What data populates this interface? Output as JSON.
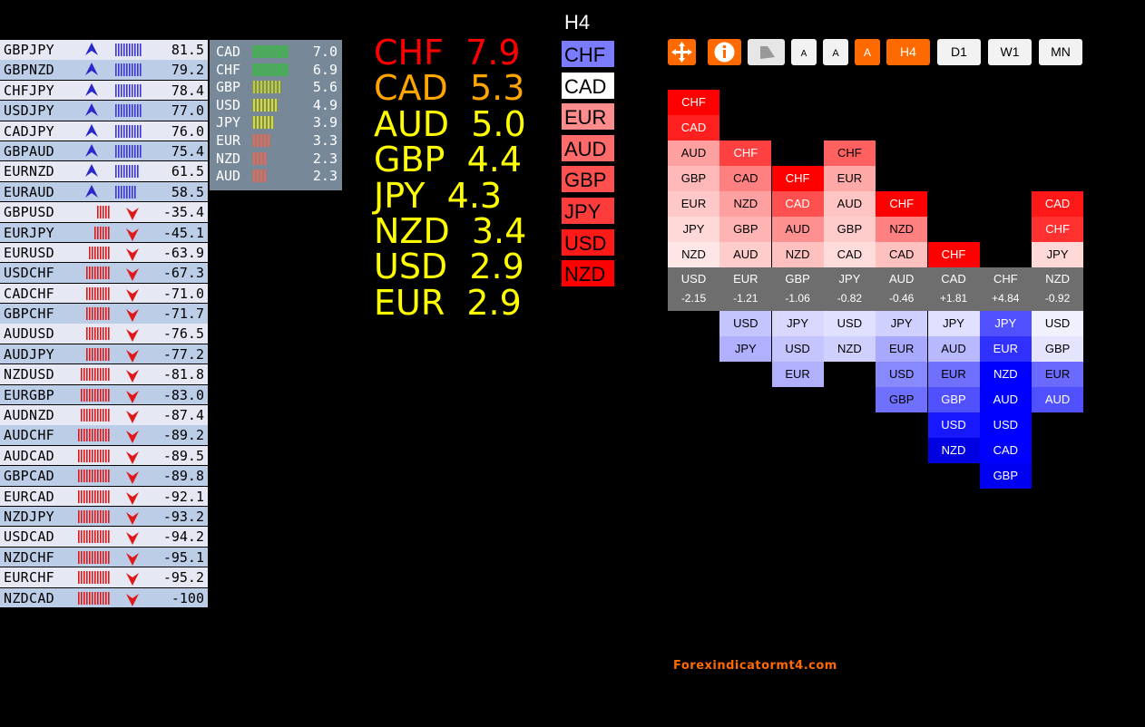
{
  "pairs": [
    {
      "name": "GBPJPY",
      "value": "81.5",
      "dir": "up",
      "bars": 10
    },
    {
      "name": "GBPNZD",
      "value": "79.2",
      "dir": "up",
      "bars": 10
    },
    {
      "name": "CHFJPY",
      "value": "78.4",
      "dir": "up",
      "bars": 10
    },
    {
      "name": "USDJPY",
      "value": "77.0",
      "dir": "up",
      "bars": 10
    },
    {
      "name": "CADJPY",
      "value": "76.0",
      "dir": "up",
      "bars": 10
    },
    {
      "name": "GBPAUD",
      "value": "75.4",
      "dir": "up",
      "bars": 10
    },
    {
      "name": "EURNZD",
      "value": "61.5",
      "dir": "up",
      "bars": 9
    },
    {
      "name": "EURAUD",
      "value": "58.5",
      "dir": "up",
      "bars": 8
    },
    {
      "name": "GBPUSD",
      "value": "-35.4",
      "dir": "down",
      "bars": 5
    },
    {
      "name": "EURJPY",
      "value": "-45.1",
      "dir": "down",
      "bars": 6
    },
    {
      "name": "EURUSD",
      "value": "-63.9",
      "dir": "down",
      "bars": 8
    },
    {
      "name": "USDCHF",
      "value": "-67.3",
      "dir": "down",
      "bars": 9
    },
    {
      "name": "CADCHF",
      "value": "-71.0",
      "dir": "down",
      "bars": 9
    },
    {
      "name": "GBPCHF",
      "value": "-71.7",
      "dir": "down",
      "bars": 9
    },
    {
      "name": "AUDUSD",
      "value": "-76.5",
      "dir": "down",
      "bars": 9
    },
    {
      "name": "AUDJPY",
      "value": "-77.2",
      "dir": "down",
      "bars": 9
    },
    {
      "name": "NZDUSD",
      "value": "-81.8",
      "dir": "down",
      "bars": 11
    },
    {
      "name": "EURGBP",
      "value": "-83.0",
      "dir": "down",
      "bars": 11
    },
    {
      "name": "AUDNZD",
      "value": "-87.4",
      "dir": "down",
      "bars": 11
    },
    {
      "name": "AUDCHF",
      "value": "-89.2",
      "dir": "down",
      "bars": 12
    },
    {
      "name": "AUDCAD",
      "value": "-89.5",
      "dir": "down",
      "bars": 12
    },
    {
      "name": "GBPCAD",
      "value": "-89.8",
      "dir": "down",
      "bars": 12
    },
    {
      "name": "EURCAD",
      "value": "-92.1",
      "dir": "down",
      "bars": 12
    },
    {
      "name": "NZDJPY",
      "value": "-93.2",
      "dir": "down",
      "bars": 12
    },
    {
      "name": "USDCAD",
      "value": "-94.2",
      "dir": "down",
      "bars": 12
    },
    {
      "name": "NZDCHF",
      "value": "-95.1",
      "dir": "down",
      "bars": 12
    },
    {
      "name": "EURCHF",
      "value": "-95.2",
      "dir": "down",
      "bars": 12
    },
    {
      "name": "NZDCAD",
      "value": "-100",
      "dir": "down",
      "bars": 12
    }
  ],
  "meter": [
    {
      "cur": "CAD",
      "value": "7.0",
      "bars": 10,
      "color": "#22cc22"
    },
    {
      "cur": "CHF",
      "value": "6.9",
      "bars": 10,
      "color": "#22cc22"
    },
    {
      "cur": "GBP",
      "value": "5.6",
      "bars": 8,
      "color": "#c8d400"
    },
    {
      "cur": "USD",
      "value": "4.9",
      "bars": 7,
      "color": "#e0e000"
    },
    {
      "cur": "JPY",
      "value": "3.9",
      "bars": 6,
      "color": "#e0e000"
    },
    {
      "cur": "EUR",
      "value": "3.3",
      "bars": 5,
      "color": "#ff6040"
    },
    {
      "cur": "NZD",
      "value": "2.3",
      "bars": 4,
      "color": "#ff6040"
    },
    {
      "cur": "AUD",
      "value": "2.3",
      "bars": 4,
      "color": "#ff6040"
    }
  ],
  "big": [
    {
      "text": "CHF  7.9",
      "color": "#ff0000"
    },
    {
      "text": "CAD  5.3",
      "color": "#ffa500"
    },
    {
      "text": "AUD  5.0",
      "color": "#ffff00"
    },
    {
      "text": "GBP  4.4",
      "color": "#ffff00"
    },
    {
      "text": "JPY  4.3",
      "color": "#ffff00"
    },
    {
      "text": "NZD  3.4",
      "color": "#ffff00"
    },
    {
      "text": "USD  2.9",
      "color": "#ffff00"
    },
    {
      "text": "EUR  2.9",
      "color": "#ffff00"
    }
  ],
  "h4": {
    "title": "H4",
    "boxes": [
      {
        "label": "CHF",
        "color": "#7b7bff"
      },
      {
        "label": "CAD",
        "color": "#ffffff"
      },
      {
        "label": "EUR",
        "color": "#ff8c8c"
      },
      {
        "label": "AUD",
        "color": "#ff6a6a"
      },
      {
        "label": "GBP",
        "color": "#ff5050"
      },
      {
        "label": "JPY",
        "color": "#ff3c3c"
      },
      {
        "label": "USD",
        "color": "#ff1a1a"
      },
      {
        "label": "NZD",
        "color": "#ff0000"
      }
    ]
  },
  "toolbar": {
    "buttons": [
      {
        "name": "move-icon",
        "label": "✥",
        "bg": "#ff6a00",
        "fg": "#fff"
      },
      {
        "name": "info-icon",
        "label": "ℹ",
        "bg": "#ff6a00",
        "fg": "#fff"
      },
      {
        "name": "bell-icon",
        "label": "",
        "bg": "#e6e6e6",
        "fg": "#888"
      },
      {
        "name": "font-small-button",
        "label": "A",
        "bg": "#f2f2f2",
        "fg": "#000"
      },
      {
        "name": "font-medium-button",
        "label": "A",
        "bg": "#f2f2f2",
        "fg": "#000"
      },
      {
        "name": "font-large-button",
        "label": "A",
        "bg": "#ff6a00",
        "fg": "#fff"
      },
      {
        "name": "timeframe-h4-button",
        "label": "H4",
        "bg": "#ff6a00",
        "fg": "#fff"
      },
      {
        "name": "timeframe-d1-button",
        "label": "D1",
        "bg": "#f2f2f2",
        "fg": "#000"
      },
      {
        "name": "timeframe-w1-button",
        "label": "W1",
        "bg": "#f2f2f2",
        "fg": "#000"
      },
      {
        "name": "timeframe-mn-button",
        "label": "MN",
        "bg": "#f2f2f2",
        "fg": "#000"
      }
    ]
  },
  "grid": {
    "columns": [
      {
        "cur": "USD",
        "val": "-2.15",
        "above": [
          "CHF",
          "CAD",
          "AUD",
          "GBP",
          "EUR",
          "JPY",
          "NZD"
        ],
        "below": []
      },
      {
        "cur": "EUR",
        "val": "-1.21",
        "above": [
          "CHF",
          "CAD",
          "NZD",
          "GBP",
          "AUD"
        ],
        "below": [
          "USD",
          "JPY"
        ]
      },
      {
        "cur": "GBP",
        "val": "-1.06",
        "above": [
          "CHF",
          "CAD",
          "AUD",
          "NZD"
        ],
        "below": [
          "JPY",
          "USD",
          "EUR"
        ]
      },
      {
        "cur": "JPY",
        "val": "-0.82",
        "above": [
          "CHF",
          "EUR",
          "AUD",
          "GBP",
          "CAD"
        ],
        "below": [
          "USD",
          "NZD"
        ]
      },
      {
        "cur": "AUD",
        "val": "-0.46",
        "above": [
          "CHF",
          "NZD",
          "CAD"
        ],
        "below": [
          "JPY",
          "EUR",
          "USD",
          "GBP"
        ]
      },
      {
        "cur": "CAD",
        "val": "+1.81",
        "above": [
          "CHF"
        ],
        "below": [
          "JPY",
          "AUD",
          "EUR",
          "GBP",
          "USD",
          "NZD"
        ]
      },
      {
        "cur": "CHF",
        "val": "+4.84",
        "above": [],
        "below": [
          "JPY",
          "EUR",
          "NZD",
          "AUD",
          "USD",
          "CAD",
          "GBP"
        ]
      },
      {
        "cur": "NZD",
        "val": "-0.92",
        "above": [
          "CAD",
          "CHF",
          "JPY"
        ],
        "below": [
          "USD",
          "GBP",
          "EUR",
          "AUD"
        ]
      }
    ],
    "above_colors": {
      "0": [
        "#ff0000",
        "#ff2020",
        "#ffa0a0",
        "#ffb8b8",
        "#ffc8c8",
        "#ffd8d8",
        "#ffe6e6"
      ],
      "1": [
        "#ff4040",
        "#ff8080",
        "#ffa0a0",
        "#ffb4b4",
        "#ffcccc"
      ],
      "2": [
        "#ff0000",
        "#ff5050",
        "#ff9090",
        "#ffc0c0"
      ],
      "3": [
        "#ff6060",
        "#ffa8a8",
        "#ffc4c4",
        "#ffcccc",
        "#ffdcdc"
      ],
      "4": [
        "#ff0000",
        "#ff8080",
        "#ffc0c0"
      ],
      "5": [
        "#ff0000"
      ],
      "7": [
        "#ff1818",
        "#ff3030",
        "#ffd8d8"
      ]
    },
    "below_colors": {
      "0": [],
      "1": [
        "#c4c4ff",
        "#b0b0ff"
      ],
      "2": [
        "#d8d8ff",
        "#c4c4ff",
        "#b0b0ff"
      ],
      "3": [
        "#e0e0ff",
        "#d0d0ff"
      ],
      "4": [
        "#d0d0ff",
        "#a8a8ff",
        "#8888ff",
        "#7070ff"
      ],
      "5": [
        "#e0e0ff",
        "#b8b8ff",
        "#7070ff",
        "#5050ff",
        "#1818ff",
        "#0000e0"
      ],
      "6": [
        "#5050ff",
        "#3030ff",
        "#0000ff",
        "#0000ff",
        "#0000ff",
        "#0000ff",
        "#0000f0"
      ],
      "7": [
        "#f0f0ff",
        "#e4e4ff",
        "#6a6aff",
        "#5050ff"
      ]
    }
  },
  "watermark": "Forexindicatormt4.com"
}
